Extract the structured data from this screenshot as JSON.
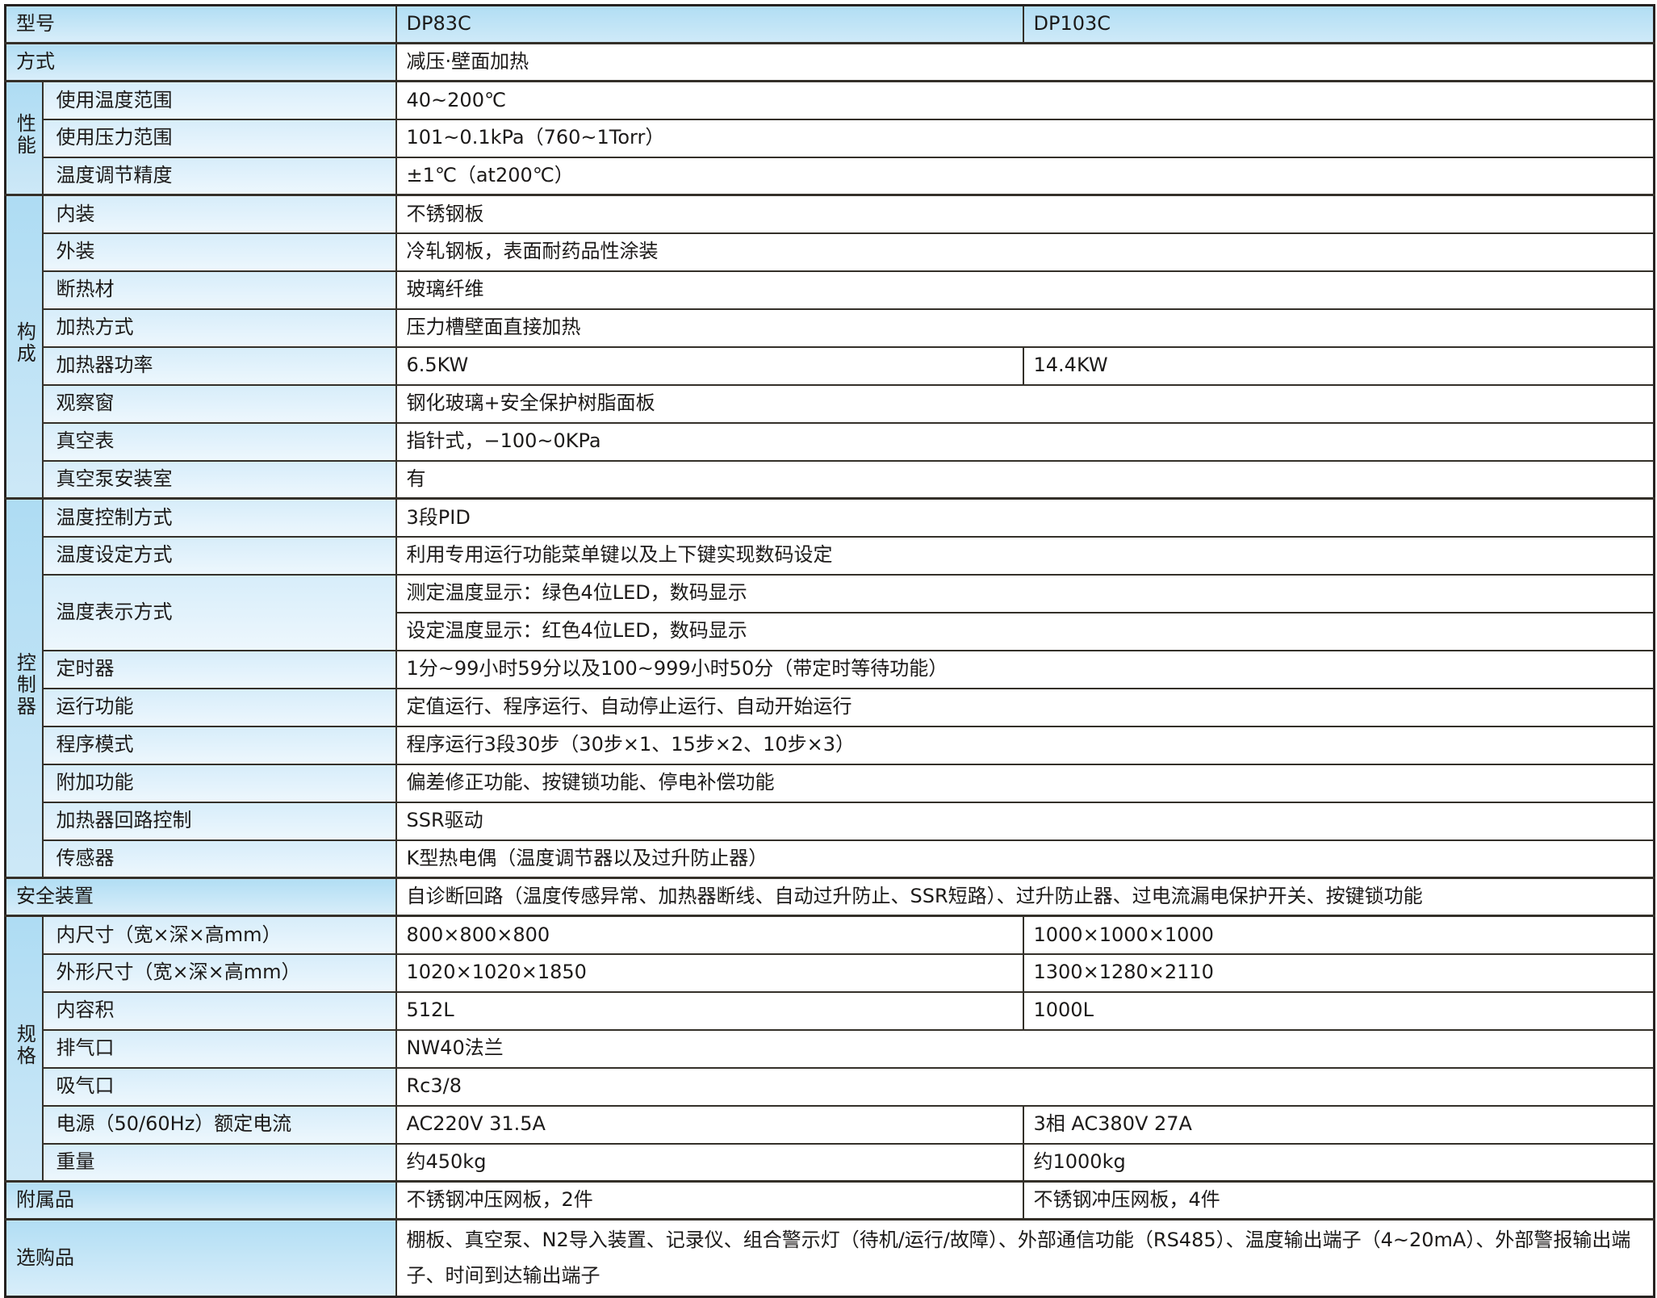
{
  "header": {
    "label": "型号",
    "model1": "DP83C",
    "model2": "DP103C"
  },
  "method": {
    "label": "方式",
    "value": "减压·壁面加热"
  },
  "performance": {
    "label": "性能",
    "rows": [
      {
        "label": "使用温度范围",
        "value": "40~200℃"
      },
      {
        "label": "使用压力范围",
        "value": "101~0.1kPa（760~1Torr）"
      },
      {
        "label": "温度调节精度",
        "value": "±1℃（at200℃）"
      }
    ]
  },
  "construction": {
    "label": "构成",
    "rows": [
      {
        "label": "内装",
        "value": "不锈钢板"
      },
      {
        "label": "外装",
        "value": "冷轧钢板，表面耐药品性涂装"
      },
      {
        "label": "断热材",
        "value": "玻璃纤维"
      },
      {
        "label": "加热方式",
        "value": "压力槽壁面直接加热"
      },
      {
        "label": "加热器功率",
        "v1": "6.5KW",
        "v2": "14.4KW"
      },
      {
        "label": "观察窗",
        "value": "钢化玻璃+安全保护树脂面板"
      },
      {
        "label": "真空表",
        "value": "指针式，−100~0KPa"
      },
      {
        "label": "真空泵安装室",
        "value": "有"
      }
    ]
  },
  "controller": {
    "label": "控制器",
    "rows": [
      {
        "label": "温度控制方式",
        "value": "3段PID"
      },
      {
        "label": "温度设定方式",
        "value": "利用专用运行功能菜单键以及上下键实现数码设定"
      },
      {
        "label": "温度表示方式",
        "value": "测定温度显示：绿色4位LED，数码显示",
        "value2": "设定温度显示：红色4位LED，数码显示"
      },
      {
        "label": "定时器",
        "value": "1分~99小时59分以及100~999小时50分（带定时等待功能）"
      },
      {
        "label": "运行功能",
        "value": "定值运行、程序运行、自动停止运行、自动开始运行"
      },
      {
        "label": "程序模式",
        "value": "程序运行3段30步（30步×1、15步×2、10步×3）"
      },
      {
        "label": "附加功能",
        "value": "偏差修正功能、按键锁功能、停电补偿功能"
      },
      {
        "label": "加热器回路控制",
        "value": "SSR驱动"
      },
      {
        "label": "传感器",
        "value": "K型热电偶（温度调节器以及过升防止器）"
      }
    ]
  },
  "safety": {
    "label": "安全装置",
    "value": "自诊断回路（温度传感异常、加热器断线、自动过升防止、SSR短路）、过升防止器、过电流漏电保护开关、按键锁功能"
  },
  "specs": {
    "label": "规格",
    "rows": [
      {
        "label": "内尺寸（宽×深×高mm）",
        "v1": "800×800×800",
        "v2": "1000×1000×1000"
      },
      {
        "label": "外形尺寸（宽×深×高mm）",
        "v1": "1020×1020×1850",
        "v2": "1300×1280×2110"
      },
      {
        "label": "内容积",
        "v1": "512L",
        "v2": "1000L"
      },
      {
        "label": "排气口",
        "value": "NW40法兰"
      },
      {
        "label": "吸气口",
        "value": "Rc3/8"
      },
      {
        "label": "电源（50/60Hz）额定电流",
        "v1": "AC220V 31.5A",
        "v2": "3相 AC380V 27A"
      },
      {
        "label": "重量",
        "v1": "约450kg",
        "v2": "约1000kg"
      }
    ]
  },
  "accessories": {
    "label": "附属品",
    "v1": "不锈钢冲压网板，2件",
    "v2": "不锈钢冲压网板，4件"
  },
  "optional": {
    "label": "选购品",
    "value": "棚板、真空泵、N2导入装置、记录仪、组合警示灯（待机/运行/故障）、外部通信功能（RS485）、温度输出端子（4~20mA）、外部警报输出端子、时间到达输出端子"
  },
  "colors": {
    "header_blue": "#b2def4",
    "sublabel_blue": "#d7edfa",
    "border_dark": "#343029",
    "value_bg": "#ffffff"
  }
}
